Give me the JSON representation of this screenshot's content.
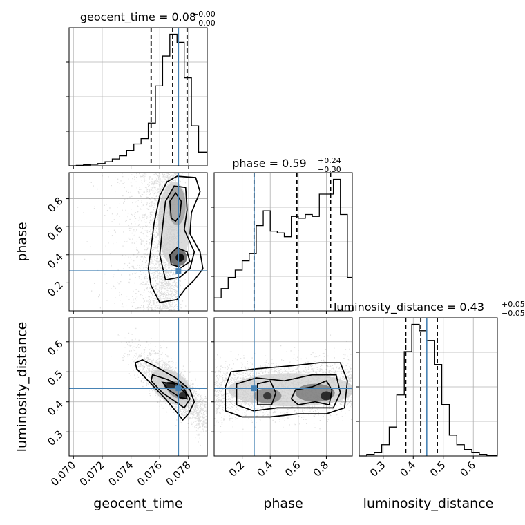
{
  "chart_data": {
    "type": "corner",
    "parameters": [
      "geocent_time",
      "phase",
      "luminosity_distance"
    ],
    "truths": {
      "geocent_time": 0.0773,
      "phase": 0.285,
      "luminosity_distance": 0.445
    },
    "titles": [
      {
        "param": "geocent_time",
        "label": "geocent_time = 0.08",
        "sup": "+0.00",
        "sub": "−0.00"
      },
      {
        "param": "phase",
        "label": "phase = 0.59",
        "sup": "+0.24",
        "sub": "−0.30"
      },
      {
        "param": "luminosity_distance",
        "label": "luminosity_distance = 0.43",
        "sup": "+0.05",
        "sub": "−0.05"
      }
    ],
    "axis_labels": {
      "geocent_time": "geocent_time",
      "phase": "phase",
      "luminosity_distance": "luminosity_distance"
    },
    "ranges": {
      "geocent_time": [
        0.0697,
        0.0793
      ],
      "phase": [
        0.0,
        0.985
      ],
      "luminosity_distance": [
        0.22,
        0.68
      ]
    },
    "ticks": {
      "geocent_time": [
        "0.070",
        "0.072",
        "0.074",
        "0.076",
        "0.078"
      ],
      "phase_x": [
        "0.2",
        "0.4",
        "0.6",
        "0.8"
      ],
      "phase_y": [
        "0.2",
        "0.4",
        "0.6",
        "0.8"
      ],
      "luminosity_distance_x": [
        "0.3",
        "0.4",
        "0.5",
        "0.6"
      ],
      "luminosity_distance_y": [
        "0.3",
        "0.4",
        "0.5",
        "0.6"
      ]
    },
    "quantiles": {
      "geocent_time": [
        0.0754,
        0.0769,
        0.0779
      ],
      "phase": [
        0.285,
        0.59,
        0.83
      ],
      "luminosity_distance": [
        0.375,
        0.425,
        0.48
      ]
    },
    "histograms": {
      "geocent_time": {
        "edges": [
          0.0697,
          0.0702,
          0.0707,
          0.0712,
          0.0717,
          0.0722,
          0.0727,
          0.0732,
          0.0737,
          0.0742,
          0.0747,
          0.0752,
          0.0757,
          0.0762,
          0.0767,
          0.0772,
          0.0777,
          0.0782,
          0.0787,
          0.0793
        ],
        "counts": [
          0,
          0.5,
          1.0,
          1.5,
          2.5,
          4.5,
          7.5,
          11,
          17,
          24,
          30,
          47,
          88,
          121,
          145,
          136,
          97,
          44,
          15
        ]
      },
      "phase": {
        "edges": [
          0.0,
          0.05,
          0.1,
          0.15,
          0.2,
          0.25,
          0.3,
          0.35,
          0.4,
          0.45,
          0.5,
          0.55,
          0.6,
          0.65,
          0.7,
          0.75,
          0.8,
          0.85,
          0.9,
          0.95,
          0.985
        ],
        "counts": [
          7,
          12,
          18,
          22,
          27,
          31,
          46,
          54,
          43,
          42,
          40,
          51,
          50,
          52,
          51,
          63,
          63,
          71,
          52,
          18
        ]
      },
      "luminosity_distance": {
        "edges": [
          0.22,
          0.245,
          0.27,
          0.295,
          0.32,
          0.345,
          0.37,
          0.395,
          0.42,
          0.445,
          0.47,
          0.495,
          0.52,
          0.545,
          0.57,
          0.595,
          0.62,
          0.645,
          0.68
        ],
        "counts": [
          0,
          1,
          2,
          7,
          18,
          38,
          65,
          82,
          78,
          72,
          57,
          32,
          13,
          7,
          4,
          2,
          1,
          0.5
        ]
      }
    }
  }
}
